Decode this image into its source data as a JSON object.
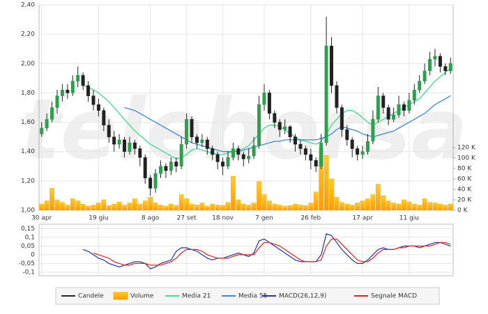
{
  "chart_data": [
    {
      "type": "candlestick",
      "watermark": "teleborsa",
      "xlim": [
        -0.5,
        79.5
      ],
      "xticks": [
        {
          "value": 0,
          "label": "30 apr"
        },
        {
          "value": 11,
          "label": "19 giu"
        },
        {
          "value": 21,
          "label": "8 ago"
        },
        {
          "value": 28,
          "label": "27 set"
        },
        {
          "value": 35,
          "label": "18 nov"
        },
        {
          "value": 43,
          "label": "7 gen"
        },
        {
          "value": 52,
          "label": "26 feb"
        },
        {
          "value": 62,
          "label": "17 apr"
        },
        {
          "value": 71,
          "label": "11 giu"
        }
      ],
      "ylim": [
        1.0,
        2.4
      ],
      "yticks": [
        {
          "value": 1.0,
          "label": "1,00"
        },
        {
          "value": 1.2,
          "label": "1,20"
        },
        {
          "value": 1.4,
          "label": "1,40"
        },
        {
          "value": 1.6,
          "label": "1,60"
        },
        {
          "value": 1.8,
          "label": "1,80"
        },
        {
          "value": 2.0,
          "label": "2,00"
        },
        {
          "value": 2.2,
          "label": "2,20"
        },
        {
          "value": 2.4,
          "label": "2,40"
        }
      ],
      "y2lim": [
        0,
        393
      ],
      "y2ticks": [
        {
          "value": 0,
          "label": "0 K"
        },
        {
          "value": 20,
          "label": "20 K"
        },
        {
          "value": 40,
          "label": "40 K"
        },
        {
          "value": 60,
          "label": "60 K"
        },
        {
          "value": 80,
          "label": "80 K"
        },
        {
          "value": 100,
          "label": "100 K"
        },
        {
          "value": 120,
          "label": "120 K"
        }
      ],
      "grid": true,
      "candles_name": "Candele",
      "up_color": "#2e9e4f",
      "down_color": "#222222",
      "candles": [
        [
          1.52,
          1.6,
          1.5,
          1.56
        ],
        [
          1.56,
          1.66,
          1.54,
          1.62
        ],
        [
          1.62,
          1.74,
          1.6,
          1.7
        ],
        [
          1.7,
          1.82,
          1.66,
          1.78
        ],
        [
          1.78,
          1.86,
          1.74,
          1.82
        ],
        [
          1.82,
          1.86,
          1.76,
          1.8
        ],
        [
          1.8,
          1.92,
          1.78,
          1.88
        ],
        [
          1.88,
          1.98,
          1.84,
          1.92
        ],
        [
          1.92,
          1.94,
          1.82,
          1.85
        ],
        [
          1.85,
          1.88,
          1.74,
          1.78
        ],
        [
          1.78,
          1.82,
          1.68,
          1.72
        ],
        [
          1.72,
          1.76,
          1.64,
          1.68
        ],
        [
          1.68,
          1.7,
          1.54,
          1.58
        ],
        [
          1.58,
          1.62,
          1.46,
          1.5
        ],
        [
          1.5,
          1.54,
          1.4,
          1.45
        ],
        [
          1.45,
          1.52,
          1.42,
          1.48
        ],
        [
          1.48,
          1.5,
          1.36,
          1.4
        ],
        [
          1.4,
          1.5,
          1.38,
          1.46
        ],
        [
          1.46,
          1.48,
          1.38,
          1.42
        ],
        [
          1.42,
          1.44,
          1.3,
          1.36
        ],
        [
          1.36,
          1.38,
          1.18,
          1.22
        ],
        [
          1.22,
          1.24,
          1.1,
          1.15
        ],
        [
          1.15,
          1.28,
          1.12,
          1.25
        ],
        [
          1.25,
          1.34,
          1.22,
          1.3
        ],
        [
          1.3,
          1.32,
          1.22,
          1.27
        ],
        [
          1.27,
          1.36,
          1.24,
          1.33
        ],
        [
          1.33,
          1.36,
          1.26,
          1.3
        ],
        [
          1.3,
          1.5,
          1.28,
          1.45
        ],
        [
          1.45,
          1.66,
          1.42,
          1.62
        ],
        [
          1.62,
          1.64,
          1.46,
          1.5
        ],
        [
          1.5,
          1.52,
          1.42,
          1.46
        ],
        [
          1.46,
          1.52,
          1.43,
          1.48
        ],
        [
          1.48,
          1.5,
          1.38,
          1.42
        ],
        [
          1.42,
          1.44,
          1.34,
          1.38
        ],
        [
          1.38,
          1.4,
          1.28,
          1.33
        ],
        [
          1.33,
          1.36,
          1.24,
          1.3
        ],
        [
          1.3,
          1.4,
          1.28,
          1.36
        ],
        [
          1.36,
          1.46,
          1.34,
          1.42
        ],
        [
          1.42,
          1.44,
          1.34,
          1.38
        ],
        [
          1.38,
          1.4,
          1.3,
          1.35
        ],
        [
          1.35,
          1.42,
          1.32,
          1.37
        ],
        [
          1.37,
          1.5,
          1.35,
          1.44
        ],
        [
          1.44,
          1.78,
          1.42,
          1.72
        ],
        [
          1.72,
          1.86,
          1.68,
          1.8
        ],
        [
          1.8,
          1.82,
          1.62,
          1.66
        ],
        [
          1.66,
          1.68,
          1.56,
          1.6
        ],
        [
          1.6,
          1.62,
          1.5,
          1.55
        ],
        [
          1.55,
          1.62,
          1.52,
          1.57
        ],
        [
          1.57,
          1.58,
          1.46,
          1.5
        ],
        [
          1.5,
          1.52,
          1.4,
          1.45
        ],
        [
          1.45,
          1.48,
          1.38,
          1.42
        ],
        [
          1.42,
          1.44,
          1.34,
          1.38
        ],
        [
          1.38,
          1.42,
          1.28,
          1.34
        ],
        [
          1.34,
          1.36,
          1.26,
          1.3
        ],
        [
          1.3,
          1.52,
          1.28,
          1.46
        ],
        [
          1.46,
          2.32,
          1.44,
          2.12
        ],
        [
          2.12,
          2.18,
          1.8,
          1.85
        ],
        [
          1.85,
          1.88,
          1.66,
          1.7
        ],
        [
          1.7,
          1.72,
          1.5,
          1.55
        ],
        [
          1.55,
          1.58,
          1.44,
          1.48
        ],
        [
          1.48,
          1.5,
          1.36,
          1.42
        ],
        [
          1.42,
          1.44,
          1.34,
          1.38
        ],
        [
          1.38,
          1.44,
          1.35,
          1.4
        ],
        [
          1.4,
          1.52,
          1.38,
          1.47
        ],
        [
          1.47,
          1.68,
          1.45,
          1.62
        ],
        [
          1.62,
          1.84,
          1.6,
          1.78
        ],
        [
          1.78,
          1.8,
          1.66,
          1.7
        ],
        [
          1.7,
          1.72,
          1.58,
          1.62
        ],
        [
          1.62,
          1.7,
          1.6,
          1.65
        ],
        [
          1.65,
          1.78,
          1.63,
          1.72
        ],
        [
          1.72,
          1.74,
          1.64,
          1.68
        ],
        [
          1.68,
          1.8,
          1.66,
          1.75
        ],
        [
          1.75,
          1.86,
          1.72,
          1.82
        ],
        [
          1.82,
          1.92,
          1.8,
          1.88
        ],
        [
          1.88,
          2.0,
          1.86,
          1.95
        ],
        [
          1.95,
          2.08,
          1.92,
          2.03
        ],
        [
          2.03,
          2.1,
          1.98,
          2.05
        ],
        [
          2.05,
          2.07,
          1.94,
          1.98
        ],
        [
          1.98,
          2.0,
          1.92,
          1.95
        ],
        [
          1.95,
          2.04,
          1.93,
          2.0
        ]
      ],
      "volume": {
        "name": "Volume",
        "color": "#ffaa00",
        "axis": "y2",
        "values": [
          12,
          18,
          42,
          20,
          15,
          10,
          22,
          18,
          12,
          8,
          10,
          14,
          20,
          9,
          12,
          16,
          10,
          14,
          22,
          12,
          18,
          25,
          14,
          10,
          8,
          12,
          9,
          30,
          22,
          12,
          10,
          14,
          8,
          12,
          10,
          9,
          15,
          65,
          20,
          12,
          10,
          14,
          55,
          30,
          18,
          12,
          10,
          8,
          9,
          12,
          10,
          9,
          14,
          35,
          120,
          105,
          60,
          25,
          15,
          12,
          10,
          14,
          18,
          22,
          30,
          50,
          28,
          18,
          14,
          12,
          20,
          16,
          12,
          10,
          22,
          15,
          14,
          12,
          10,
          12
        ]
      },
      "series": [
        {
          "name": "Media 21",
          "color": "#3ddc8a",
          "values": [
            null,
            null,
            null,
            null,
            null,
            null,
            null,
            null,
            1.85,
            1.84,
            1.82,
            1.8,
            1.77,
            1.74,
            1.7,
            1.66,
            1.62,
            1.58,
            1.54,
            1.51,
            1.48,
            1.45,
            1.43,
            1.41,
            1.39,
            1.37,
            1.35,
            1.36,
            1.38,
            1.41,
            1.42,
            1.41,
            1.4,
            1.39,
            1.38,
            1.38,
            1.39,
            1.4,
            1.41,
            1.42,
            1.44,
            1.48,
            1.52,
            1.56,
            1.58,
            1.58,
            1.57,
            1.55,
            1.52,
            1.5,
            1.48,
            1.47,
            1.46,
            1.45,
            1.47,
            1.52,
            1.58,
            1.62,
            1.66,
            1.68,
            1.68,
            1.66,
            1.63,
            1.6,
            1.58,
            1.6,
            1.62,
            1.64,
            1.66,
            1.68,
            1.7,
            1.72,
            1.74,
            1.76,
            1.8,
            1.84,
            1.88,
            1.91,
            1.94,
            1.97
          ]
        },
        {
          "name": "Media 55",
          "color": "#3a86d6",
          "values": [
            null,
            null,
            null,
            null,
            null,
            null,
            null,
            null,
            null,
            null,
            null,
            null,
            null,
            null,
            null,
            null,
            1.7,
            1.69,
            1.68,
            1.66,
            1.64,
            1.62,
            1.6,
            1.58,
            1.56,
            1.54,
            1.52,
            1.5,
            1.48,
            1.46,
            1.45,
            1.44,
            1.43,
            1.42,
            1.41,
            1.4,
            1.4,
            1.4,
            1.4,
            1.41,
            1.42,
            1.43,
            1.44,
            1.45,
            1.46,
            1.47,
            1.47,
            1.48,
            1.48,
            1.48,
            1.48,
            1.48,
            1.48,
            1.48,
            1.49,
            1.5,
            1.52,
            1.55,
            1.57,
            1.56,
            1.55,
            1.54,
            1.52,
            1.51,
            1.5,
            1.51,
            1.52,
            1.53,
            1.54,
            1.56,
            1.58,
            1.6,
            1.62,
            1.64,
            1.66,
            1.69,
            1.72,
            1.74,
            1.76,
            1.78
          ]
        }
      ]
    },
    {
      "type": "line",
      "xlim": [
        -0.5,
        79.5
      ],
      "ylim": [
        -0.12,
        0.175
      ],
      "yticks": [
        {
          "value": -0.1,
          "label": "-0,1"
        },
        {
          "value": -0.05,
          "label": "-0,05"
        },
        0,
        {
          "value": 0.05,
          "label": "0,05"
        },
        {
          "value": 0.1,
          "label": "0,1"
        },
        {
          "value": 0.15,
          "label": "0,15"
        }
      ],
      "grid": true,
      "series": [
        {
          "name": "MACD(26,12,9)",
          "color": "#2233aa",
          "values": [
            null,
            null,
            null,
            null,
            null,
            null,
            null,
            null,
            0.03,
            0.02,
            0.0,
            -0.02,
            -0.03,
            -0.05,
            -0.06,
            -0.07,
            -0.06,
            -0.05,
            -0.04,
            -0.04,
            -0.05,
            -0.08,
            -0.07,
            -0.05,
            -0.04,
            -0.03,
            0.02,
            0.04,
            0.04,
            0.03,
            0.02,
            0.0,
            -0.02,
            -0.03,
            -0.02,
            -0.02,
            -0.01,
            0.0,
            0.01,
            0.0,
            -0.01,
            0.01,
            0.08,
            0.09,
            0.07,
            0.05,
            0.03,
            0.01,
            -0.01,
            -0.03,
            -0.04,
            -0.04,
            -0.04,
            -0.04,
            0.0,
            0.12,
            0.11,
            0.07,
            0.03,
            0.0,
            -0.03,
            -0.05,
            -0.05,
            -0.03,
            0.0,
            0.03,
            0.04,
            0.03,
            0.03,
            0.04,
            0.05,
            0.05,
            0.05,
            0.04,
            0.05,
            0.06,
            0.07,
            0.07,
            0.06,
            0.05
          ]
        },
        {
          "name": "Segnale MACD",
          "color": "#dd2222",
          "values": [
            null,
            null,
            null,
            null,
            null,
            null,
            null,
            null,
            null,
            null,
            0.01,
            0.0,
            -0.01,
            -0.02,
            -0.04,
            -0.05,
            -0.06,
            -0.06,
            -0.05,
            -0.05,
            -0.05,
            -0.06,
            -0.06,
            -0.06,
            -0.05,
            -0.04,
            -0.02,
            0.01,
            0.03,
            0.03,
            0.03,
            0.02,
            0.0,
            -0.01,
            -0.02,
            -0.02,
            -0.02,
            -0.01,
            0.0,
            0.0,
            0.0,
            0.0,
            0.04,
            0.07,
            0.07,
            0.06,
            0.05,
            0.03,
            0.01,
            -0.01,
            -0.03,
            -0.04,
            -0.04,
            -0.04,
            -0.03,
            0.05,
            0.09,
            0.09,
            0.06,
            0.03,
            0.0,
            -0.03,
            -0.04,
            -0.04,
            -0.02,
            0.01,
            0.03,
            0.03,
            0.03,
            0.04,
            0.04,
            0.05,
            0.05,
            0.05,
            0.05,
            0.05,
            0.06,
            0.07,
            0.07,
            0.06
          ]
        }
      ]
    }
  ]
}
